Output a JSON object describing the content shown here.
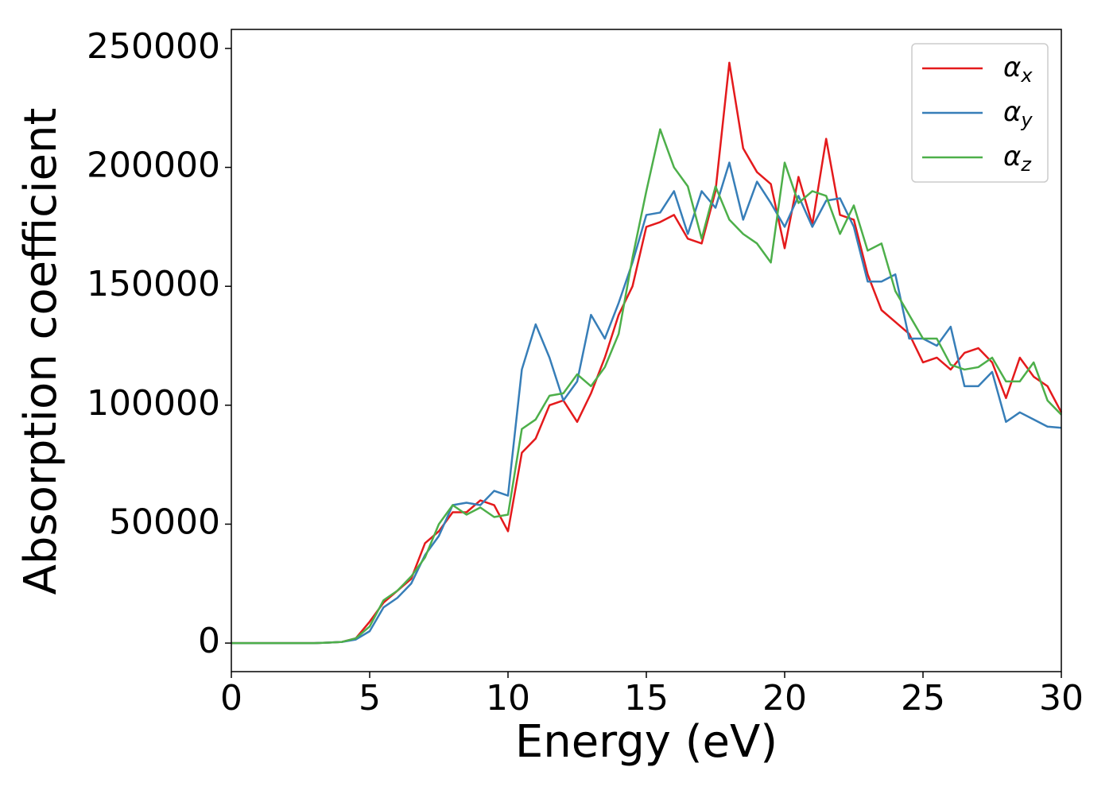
{
  "chart_data": {
    "type": "line",
    "xlabel": "Energy (eV)",
    "ylabel": "Absorption coefficient",
    "x": [
      0,
      0.5,
      1,
      1.5,
      2,
      2.5,
      3,
      3.5,
      4,
      4.5,
      5,
      5.5,
      6,
      6.5,
      7,
      7.5,
      8,
      8.5,
      9,
      9.5,
      10,
      10.5,
      11,
      11.5,
      12,
      12.5,
      13,
      13.5,
      14,
      14.5,
      15,
      15.5,
      16,
      16.5,
      17,
      17.5,
      18,
      18.5,
      19,
      19.5,
      20,
      20.5,
      21,
      21.5,
      22,
      22.5,
      23,
      23.5,
      24,
      24.5,
      25,
      25.5,
      26,
      26.5,
      27,
      27.5,
      28,
      28.5,
      29,
      29.5,
      30
    ],
    "series": [
      {
        "name": "αx",
        "color": "#e41a1c",
        "values": [
          0,
          0,
          0,
          0,
          0,
          0,
          0,
          200,
          500,
          2000,
          9000,
          17000,
          22000,
          27000,
          42000,
          47000,
          55000,
          55000,
          60000,
          58000,
          47000,
          80000,
          86000,
          100000,
          102000,
          93000,
          105000,
          120000,
          138000,
          150000,
          175000,
          177000,
          180000,
          170000,
          168000,
          190000,
          244000,
          208000,
          198000,
          193000,
          166000,
          196000,
          176000,
          212000,
          180000,
          178000,
          155000,
          140000,
          135000,
          130000,
          118000,
          120000,
          115000,
          122000,
          124000,
          118000,
          103000,
          120000,
          112000,
          108000,
          97000
        ]
      },
      {
        "name": "αy",
        "color": "#377eb8",
        "values": [
          0,
          0,
          0,
          0,
          0,
          0,
          0,
          200,
          500,
          1500,
          5000,
          15000,
          19000,
          25000,
          37000,
          45000,
          58000,
          59000,
          58000,
          64000,
          62000,
          115000,
          134000,
          120000,
          102000,
          110000,
          138000,
          128000,
          143000,
          160000,
          180000,
          181000,
          190000,
          172000,
          190000,
          183000,
          202000,
          178000,
          194000,
          185000,
          175000,
          188000,
          175000,
          186000,
          187000,
          175000,
          152000,
          152000,
          155000,
          128000,
          128000,
          125000,
          133000,
          108000,
          108000,
          114000,
          93000,
          97000,
          94000,
          91000,
          90500
        ]
      },
      {
        "name": "αz",
        "color": "#4daf4a",
        "values": [
          0,
          0,
          0,
          0,
          0,
          0,
          0,
          200,
          500,
          2000,
          7000,
          18000,
          22000,
          28000,
          36000,
          50000,
          58000,
          54000,
          57000,
          53000,
          54000,
          90000,
          94000,
          104000,
          105000,
          113000,
          108000,
          116000,
          130000,
          162000,
          190000,
          216000,
          200000,
          192000,
          170000,
          192000,
          178000,
          172000,
          168000,
          160000,
          202000,
          185000,
          190000,
          188000,
          172000,
          184000,
          165000,
          168000,
          148000,
          138000,
          128000,
          128000,
          117000,
          115000,
          116000,
          120000,
          110000,
          110000,
          118000,
          102000,
          96000
        ]
      }
    ],
    "xlim": [
      0,
      30
    ],
    "xticks": [
      0,
      5,
      10,
      15,
      20,
      25,
      30
    ],
    "ylim": [
      -12000,
      258000
    ],
    "yticks": [
      0,
      50000,
      100000,
      150000,
      200000,
      250000
    ],
    "legend": "upper right"
  }
}
